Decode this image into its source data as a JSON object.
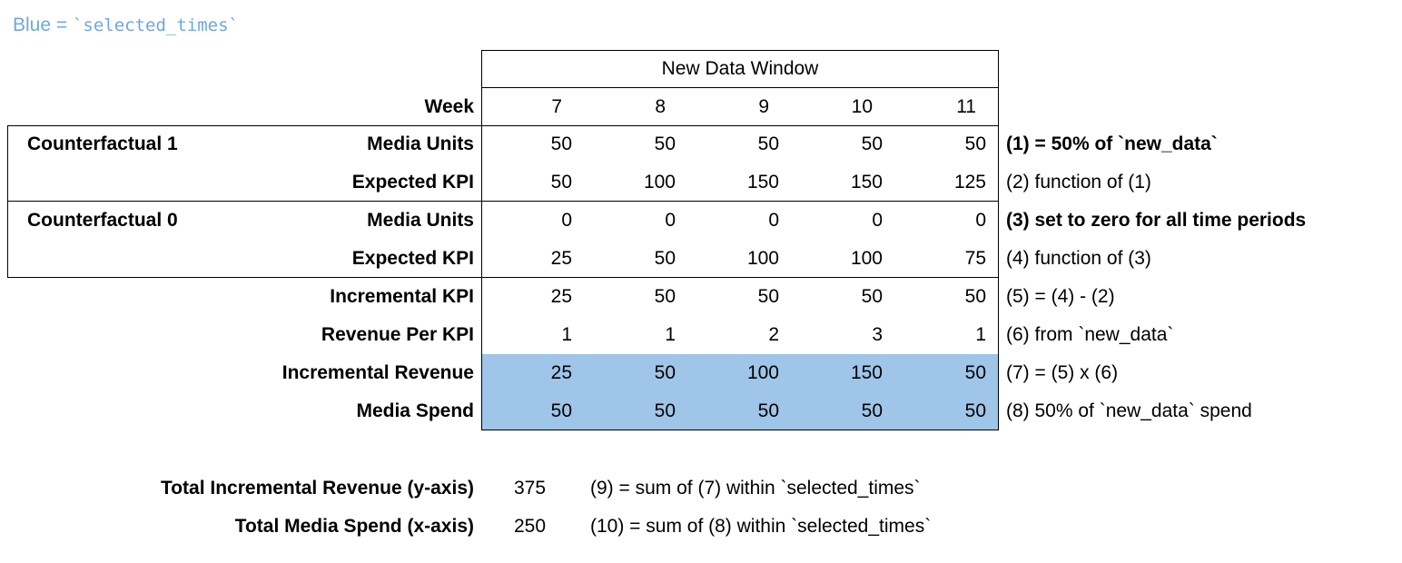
{
  "legend": {
    "prefix": "Blue = ",
    "code": "`selected_times`"
  },
  "table": {
    "window_header": "New Data Window",
    "week_label": "Week",
    "weeks": [
      "7",
      "8",
      "9",
      "10",
      "11"
    ],
    "group_labels": [
      "Counterfactual 1",
      "Counterfactual 0"
    ],
    "rows": [
      {
        "label": "Media Units",
        "values": [
          "50",
          "50",
          "50",
          "50",
          "50"
        ],
        "note": "(1) = 50% of `new_data`",
        "note_bold": true,
        "highlight": false
      },
      {
        "label": "Expected KPI",
        "values": [
          "50",
          "100",
          "150",
          "150",
          "125"
        ],
        "note": "(2) function of (1)",
        "note_bold": false,
        "highlight": false
      },
      {
        "label": "Media Units",
        "values": [
          "0",
          "0",
          "0",
          "0",
          "0"
        ],
        "note": "(3) set to zero for all time periods",
        "note_bold": true,
        "highlight": false
      },
      {
        "label": "Expected KPI",
        "values": [
          "25",
          "50",
          "100",
          "100",
          "75"
        ],
        "note": "(4) function of (3)",
        "note_bold": false,
        "highlight": false
      },
      {
        "label": "Incremental KPI",
        "values": [
          "25",
          "50",
          "50",
          "50",
          "50"
        ],
        "note": "(5) = (4) - (2)",
        "note_bold": false,
        "highlight": false
      },
      {
        "label": "Revenue Per KPI",
        "values": [
          "1",
          "1",
          "2",
          "3",
          "1"
        ],
        "note": "(6) from `new_data`",
        "note_bold": false,
        "highlight": false
      },
      {
        "label": "Incremental Revenue",
        "values": [
          "25",
          "50",
          "100",
          "150",
          "50"
        ],
        "note": "(7) = (5) x (6)",
        "note_bold": false,
        "highlight": true
      },
      {
        "label": "Media Spend",
        "values": [
          "50",
          "50",
          "50",
          "50",
          "50"
        ],
        "note": "(8) 50% of `new_data` spend",
        "note_bold": false,
        "highlight": true
      }
    ]
  },
  "totals": [
    {
      "label": "Total Incremental Revenue (y-axis)",
      "value": "375",
      "note": "(9) = sum of (7) within `selected_times`"
    },
    {
      "label": "Total Media Spend (x-axis)",
      "value": "250",
      "note": "(10) = sum of (8) within `selected_times`"
    }
  ],
  "colors": {
    "highlight_blue": "#9fc5e8",
    "legend_blue": "#6fa8dc"
  }
}
